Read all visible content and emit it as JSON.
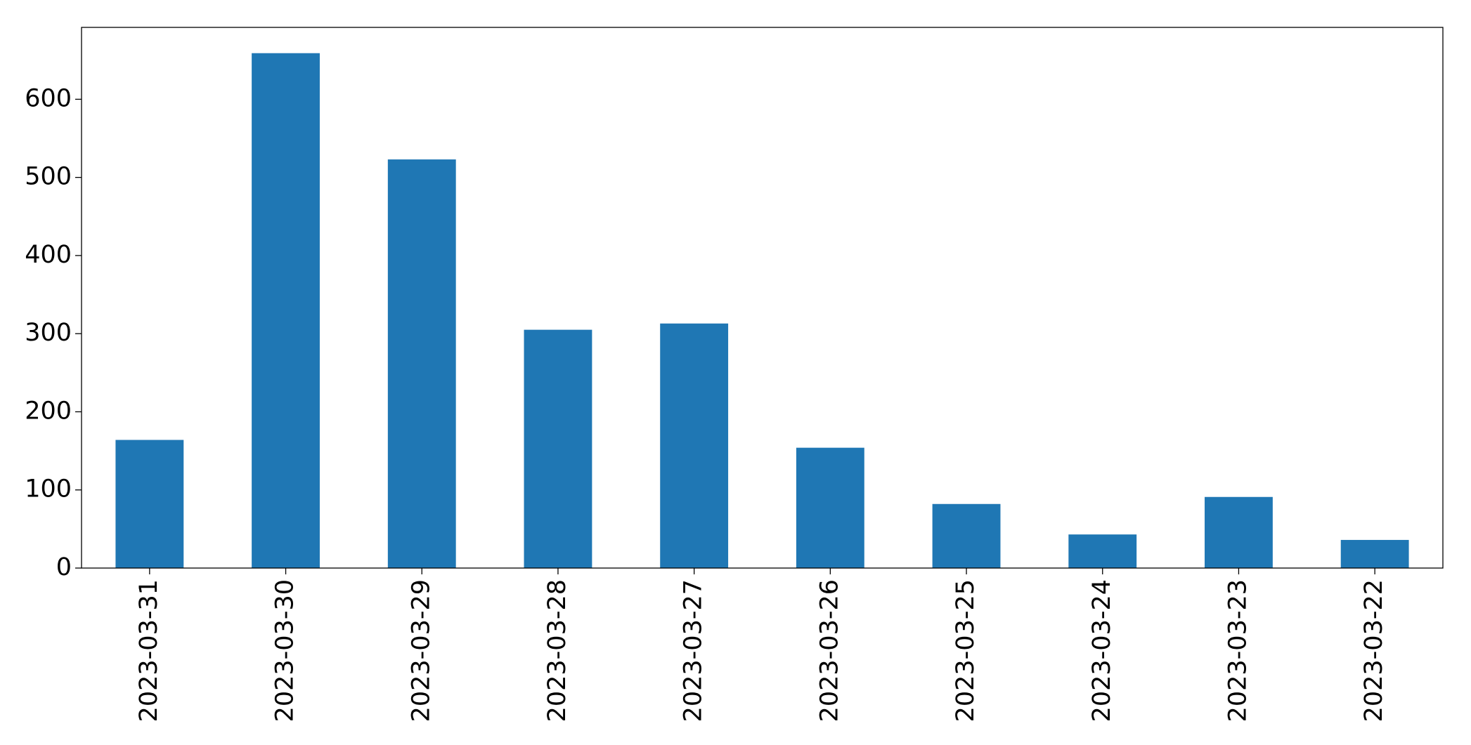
{
  "chart_data": {
    "type": "bar",
    "categories": [
      "2023-03-31",
      "2023-03-30",
      "2023-03-29",
      "2023-03-28",
      "2023-03-27",
      "2023-03-26",
      "2023-03-25",
      "2023-03-24",
      "2023-03-23",
      "2023-03-22"
    ],
    "values": [
      164,
      659,
      523,
      305,
      313,
      154,
      82,
      43,
      91,
      36
    ],
    "color": "#1f77b4",
    "ylim": [
      0,
      692
    ],
    "yticks": [
      0,
      100,
      200,
      300,
      400,
      500,
      600
    ],
    "grid": false
  }
}
